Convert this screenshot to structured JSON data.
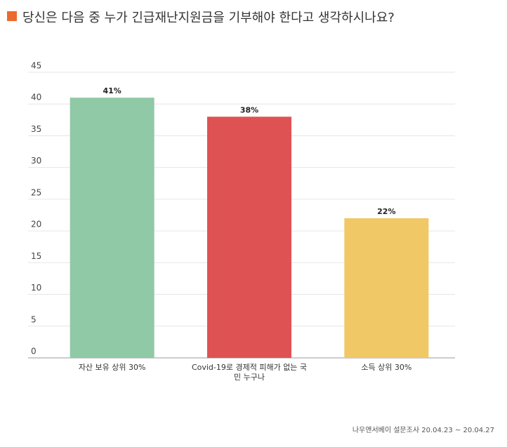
{
  "chart_data": {
    "type": "bar",
    "title": "당신은 다음 중 누가 긴급재난지원금을 기부해야 한다고 생각하시나요?",
    "categories": [
      "자산 보유 상위 30%",
      "Covid-19로 경제적 피해가 없는 국민 누구나",
      "소득 상위 30%"
    ],
    "values": [
      41,
      38,
      22
    ],
    "value_labels": [
      "41%",
      "38%",
      "22%"
    ],
    "colors": [
      "#8fc9a6",
      "#df5253",
      "#f0c865"
    ],
    "ylim": [
      0,
      45
    ],
    "yticks": [
      0,
      5,
      10,
      15,
      20,
      25,
      30,
      35,
      40,
      45
    ],
    "grid": true,
    "source": "나우앤서베이 설문조사 20.04.23 ~ 20.04.27"
  }
}
